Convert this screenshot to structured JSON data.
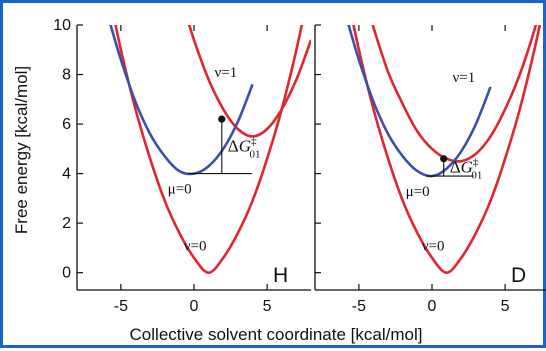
{
  "chart_data": {
    "type": "line",
    "xlabel": "Collective solvent coordinate [kcal/mol]",
    "ylabel": "Free energy [kcal/mol]",
    "xlim": [
      -8,
      8
    ],
    "ylim": [
      -0.7,
      10
    ],
    "x_ticks": [
      "-5",
      "0",
      "5"
    ],
    "y_ticks": [
      "0",
      "2",
      "4",
      "6",
      "8",
      "10"
    ],
    "grid": false,
    "colors": {
      "red": "#e0262e",
      "blue": "#3a4fb0",
      "frame": "#1b62c9"
    },
    "panels": [
      {
        "label": "H",
        "series": [
          {
            "name": "ν=0",
            "color": "#e0262e",
            "x": [
              -6,
              -5,
              -4,
              -3,
              -2,
              -1,
              0,
              1,
              2,
              3,
              4,
              5,
              6,
              7,
              8
            ],
            "y": [
              11.8,
              9.0,
              6.6,
              4.6,
              2.9,
              1.6,
              0.6,
              0.0,
              0.6,
              1.6,
              2.9,
              4.6,
              6.6,
              9.0,
              11.8
            ]
          },
          {
            "name": "ν=1",
            "color": "#e0262e",
            "x": [
              -1,
              0,
              1,
              2,
              3,
              4,
              5,
              6,
              7,
              8
            ],
            "y": [
              11.3,
              9.4,
              7.8,
              6.6,
              5.8,
              5.5,
              5.8,
              6.6,
              7.8,
              9.4
            ]
          },
          {
            "name": "μ=0",
            "color": "#3a4fb0",
            "x": [
              -6,
              -5,
              -4,
              -3,
              -2,
              -1,
              0,
              1,
              2,
              3,
              4
            ],
            "y": [
              10.6,
              8.6,
              6.9,
              5.6,
              4.7,
              4.1,
              4.0,
              4.3,
              5.0,
              6.1,
              7.6
            ]
          }
        ],
        "crossing_point": {
          "x": 1.9,
          "y": 6.2
        },
        "barrier_label": "ΔG‡01",
        "curve_labels": {
          "nu1": "ν=1",
          "mu0": "μ=0",
          "nu0": "ν=0"
        }
      },
      {
        "label": "D",
        "series": [
          {
            "name": "ν=0",
            "color": "#e0262e",
            "x": [
              -6,
              -5,
              -4,
              -3,
              -2,
              -1,
              0,
              1,
              2,
              3,
              4,
              5,
              6,
              7,
              8
            ],
            "y": [
              11.8,
              9.0,
              6.6,
              4.6,
              2.9,
              1.6,
              0.6,
              0.0,
              0.6,
              1.6,
              2.9,
              4.6,
              6.6,
              9.0,
              11.8
            ]
          },
          {
            "name": "ν=1",
            "color": "#e0262e",
            "x": [
              -5,
              -4,
              -3,
              -2,
              -1,
              0,
              1,
              2,
              3,
              4,
              5,
              6,
              7,
              8
            ],
            "y": [
              11.9,
              9.9,
              8.1,
              6.8,
              5.7,
              5.0,
              4.6,
              4.5,
              4.8,
              5.5,
              6.6,
              8.0,
              9.8,
              12.0
            ]
          },
          {
            "name": "μ=0",
            "color": "#3a4fb0",
            "x": [
              -6,
              -5,
              -4,
              -3,
              -2,
              -1,
              0,
              1,
              2,
              3,
              4
            ],
            "y": [
              10.6,
              8.6,
              6.9,
              5.6,
              4.7,
              4.1,
              3.9,
              4.2,
              4.9,
              6.0,
              7.5
            ]
          }
        ],
        "crossing_point": {
          "x": 0.8,
          "y": 4.6
        },
        "barrier_label": "ΔG‡01",
        "curve_labels": {
          "nu1": "ν=1",
          "mu0": "μ=0",
          "nu0": "ν=0"
        }
      }
    ]
  }
}
